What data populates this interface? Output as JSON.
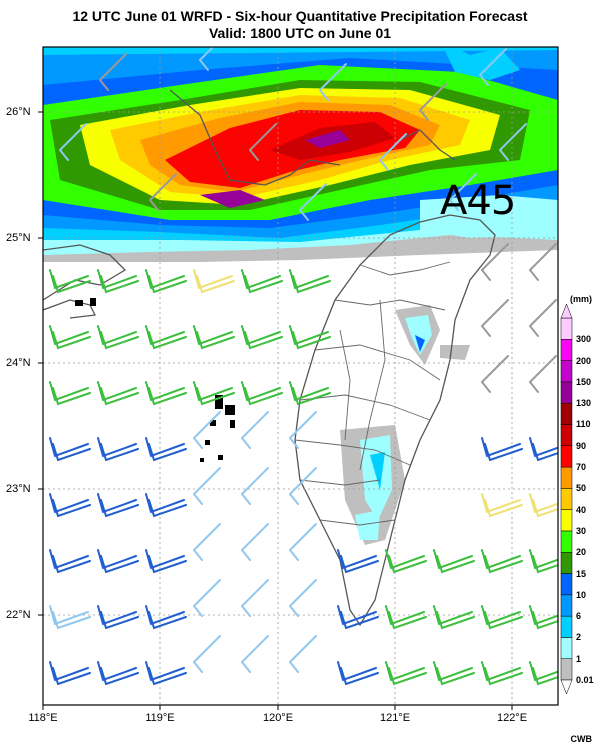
{
  "title_line1": "12 UTC June 01 WRFD - Six-hour Quantitative Precipitation Forecast",
  "title_line2": "Valid: 1800 UTC on June 01",
  "lat_labels": [
    "26°N",
    "25°N",
    "24°N",
    "23°N",
    "22°N"
  ],
  "lon_labels": [
    "118°E",
    "119°E",
    "120°E",
    "121°E",
    "122°E"
  ],
  "stamp_text": "A45",
  "credit": "CWB",
  "colorbar": {
    "unit": "(mm)",
    "levels": [
      {
        "label": "0.01",
        "color": "#bfbfbf"
      },
      {
        "label": "1",
        "color": "#9ffeff"
      },
      {
        "label": "2",
        "color": "#00cfff"
      },
      {
        "label": "6",
        "color": "#0198ff"
      },
      {
        "label": "10",
        "color": "#0165ff"
      },
      {
        "label": "15",
        "color": "#309901"
      },
      {
        "label": "20",
        "color": "#32ff00"
      },
      {
        "label": "30",
        "color": "#f8ff00"
      },
      {
        "label": "40",
        "color": "#ffcb00"
      },
      {
        "label": "50",
        "color": "#ff9a00"
      },
      {
        "label": "70",
        "color": "#fa0300"
      },
      {
        "label": "90",
        "color": "#cc0003"
      },
      {
        "label": "110",
        "color": "#a00000"
      },
      {
        "label": "130",
        "color": "#98009a"
      },
      {
        "label": "150",
        "color": "#c304cc"
      },
      {
        "label": "200",
        "color": "#f805f3"
      },
      {
        "label": "300",
        "color": "#fecbff"
      }
    ]
  },
  "wind_colors": {
    "dark_blue": "#1f5fd0",
    "light_blue": "#8fc8ee",
    "green": "#3cbf3c",
    "yellow": "#f0e070",
    "gray": "#9a9a9a"
  }
}
